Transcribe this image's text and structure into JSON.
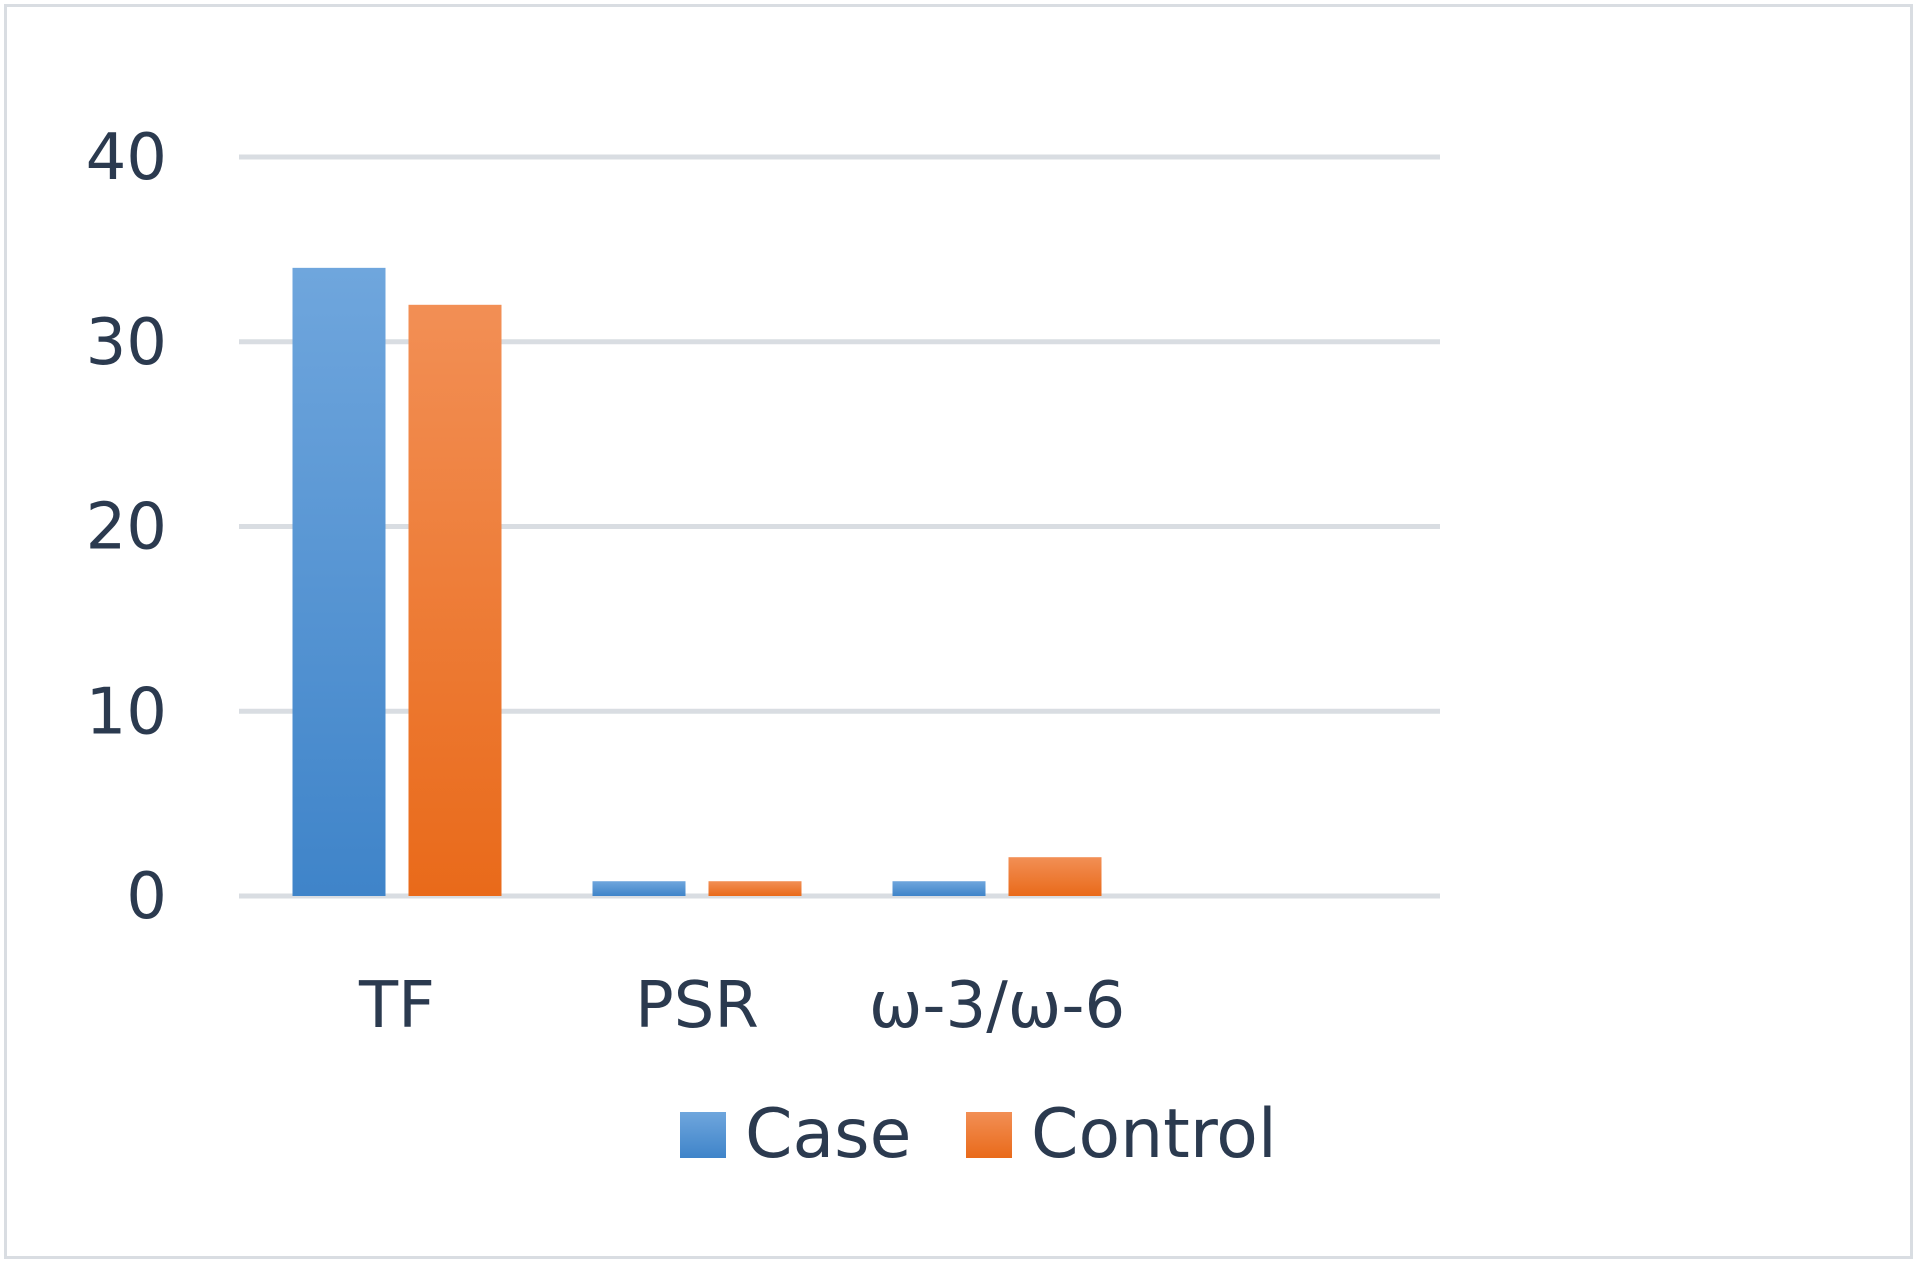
{
  "chart_data": {
    "type": "bar",
    "categories": [
      "TF",
      "PSR",
      "ω-3/ω-6"
    ],
    "series": [
      {
        "name": "Case",
        "values": [
          34,
          0.8,
          0.8
        ],
        "color": "#4a8fd3"
      },
      {
        "name": "Control",
        "values": [
          32,
          0.8,
          2.1
        ],
        "color": "#ef7a2a"
      }
    ],
    "ylim": [
      0,
      40
    ],
    "yticks": [
      0,
      10,
      20,
      30,
      40
    ],
    "grid": true,
    "legend_position": "bottom",
    "title": "",
    "xlabel": "",
    "ylabel": ""
  }
}
